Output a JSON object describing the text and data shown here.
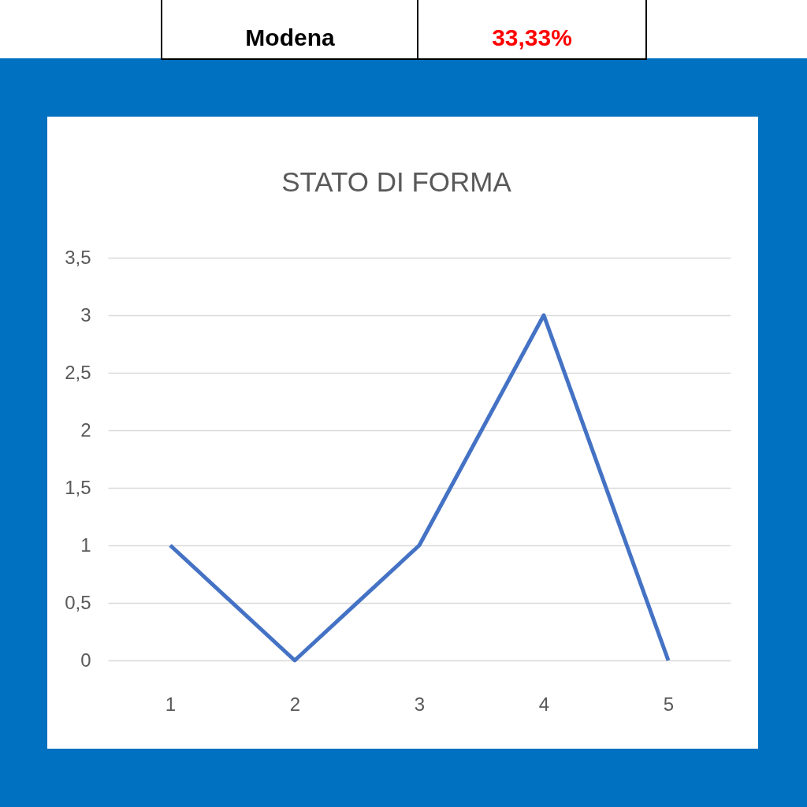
{
  "chart_data": {
    "type": "line",
    "title": "STATO DI FORMA",
    "categories": [
      "1",
      "2",
      "3",
      "4",
      "5"
    ],
    "series": [
      {
        "color": "#4472c4",
        "values": [
          1,
          0,
          1,
          3,
          0
        ]
      }
    ],
    "ylim": [
      0,
      3.5
    ],
    "yticks": [
      0,
      {
        "value": 0.5,
        "label": "0,5"
      },
      1,
      {
        "value": 1.5,
        "label": "1,5"
      },
      2,
      {
        "value": 2.5,
        "label": "2,5"
      },
      3,
      {
        "value": 3.5,
        "label": "3,5"
      }
    ],
    "grid": "y",
    "annotations": [
      "Modena",
      "33,33%"
    ]
  }
}
